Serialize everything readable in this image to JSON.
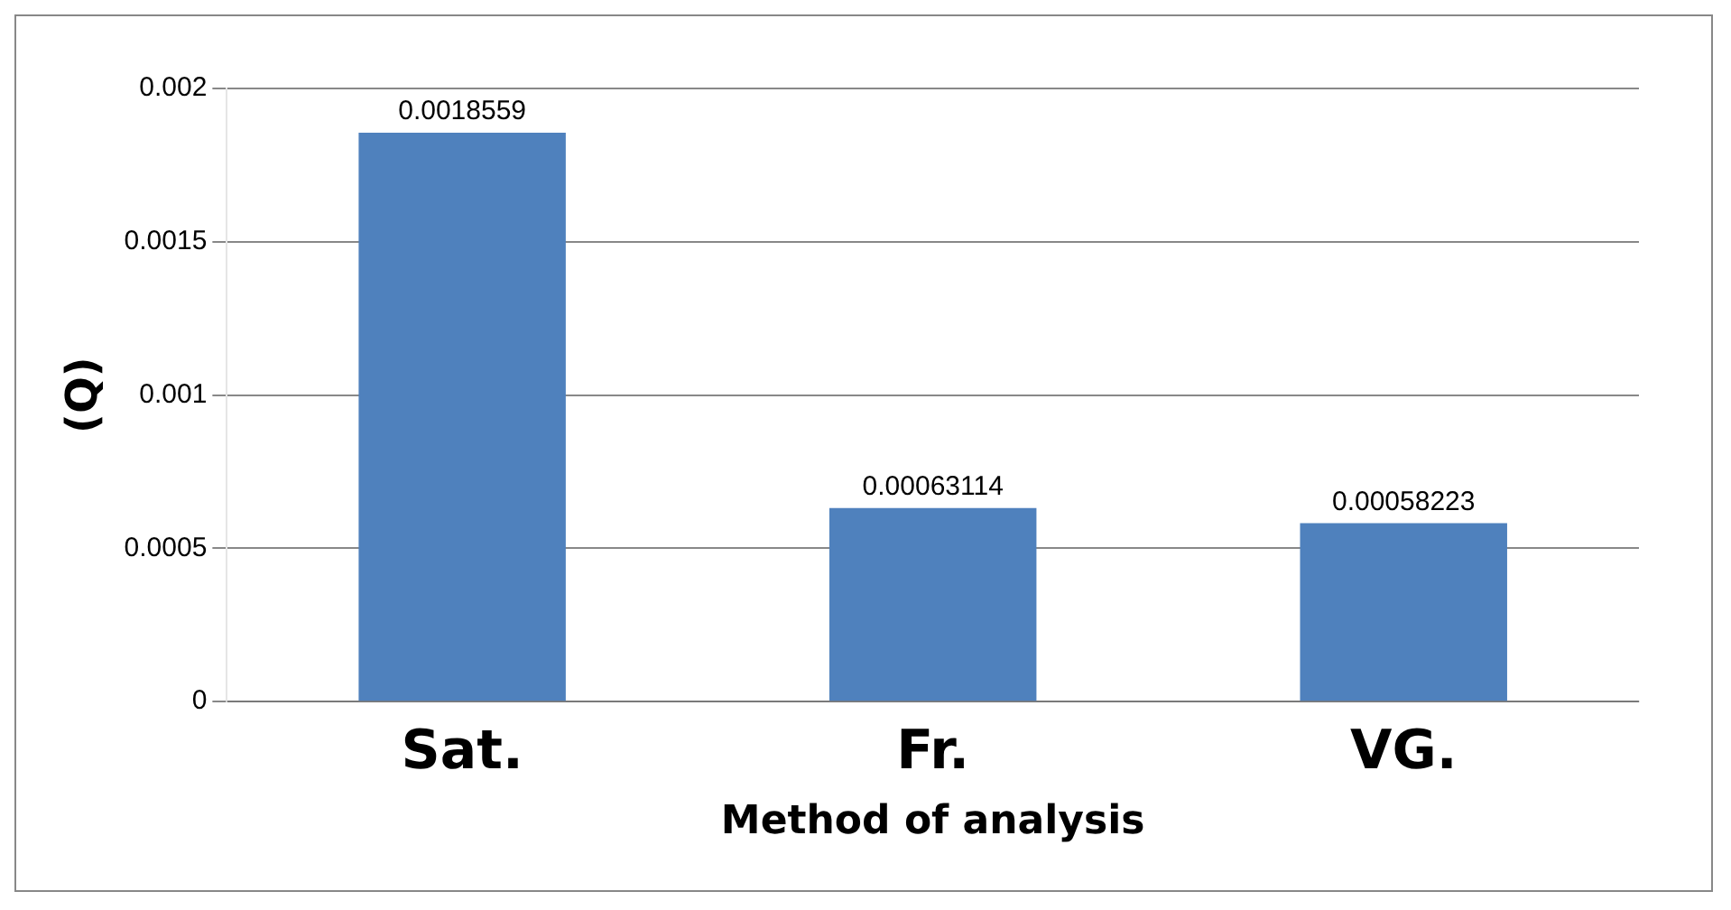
{
  "chart_data": {
    "type": "bar",
    "xlabel": "Method of analysis",
    "ylabel": "(Q)",
    "categories": [
      "Sat.",
      "Fr.",
      "VG."
    ],
    "values": [
      0.0018559,
      0.00063114,
      0.00058223
    ],
    "color": "#4f81bd",
    "ylim": [
      0,
      0.002
    ],
    "yticks": [
      0,
      0.0005,
      0.001,
      0.0015,
      0.002
    ],
    "grid": "y",
    "data_labels": true
  }
}
